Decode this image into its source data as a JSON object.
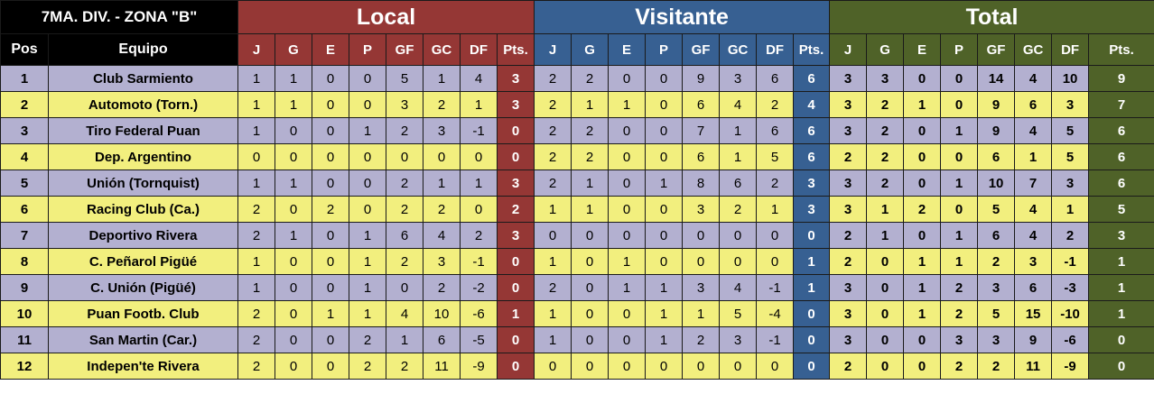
{
  "title": "7MA. DIV. - ZONA \"B\"",
  "groups": {
    "local": "Local",
    "visitante": "Visitante",
    "total": "Total"
  },
  "headers": {
    "pos": "Pos",
    "equipo": "Equipo",
    "stats": [
      "J",
      "G",
      "E",
      "P",
      "GF",
      "GC",
      "DF",
      "Pts."
    ]
  },
  "colors": {
    "local": "#953735",
    "visitante": "#376092",
    "total": "#4f6228",
    "row_lavender": "#b3b0d0",
    "row_yellow": "#f2ef7e"
  },
  "rows": [
    {
      "pos": "1",
      "team": "Club Sarmiento",
      "local": [
        "1",
        "1",
        "0",
        "0",
        "5",
        "1",
        "4",
        "3"
      ],
      "visitante": [
        "2",
        "2",
        "0",
        "0",
        "9",
        "3",
        "6",
        "6"
      ],
      "total": [
        "3",
        "3",
        "0",
        "0",
        "14",
        "4",
        "10",
        "9"
      ]
    },
    {
      "pos": "2",
      "team": "Automoto (Torn.)",
      "local": [
        "1",
        "1",
        "0",
        "0",
        "3",
        "2",
        "1",
        "3"
      ],
      "visitante": [
        "2",
        "1",
        "1",
        "0",
        "6",
        "4",
        "2",
        "4"
      ],
      "total": [
        "3",
        "2",
        "1",
        "0",
        "9",
        "6",
        "3",
        "7"
      ]
    },
    {
      "pos": "3",
      "team": "Tiro Federal Puan",
      "local": [
        "1",
        "0",
        "0",
        "1",
        "2",
        "3",
        "-1",
        "0"
      ],
      "visitante": [
        "2",
        "2",
        "0",
        "0",
        "7",
        "1",
        "6",
        "6"
      ],
      "total": [
        "3",
        "2",
        "0",
        "1",
        "9",
        "4",
        "5",
        "6"
      ]
    },
    {
      "pos": "4",
      "team": "Dep. Argentino",
      "local": [
        "0",
        "0",
        "0",
        "0",
        "0",
        "0",
        "0",
        "0"
      ],
      "visitante": [
        "2",
        "2",
        "0",
        "0",
        "6",
        "1",
        "5",
        "6"
      ],
      "total": [
        "2",
        "2",
        "0",
        "0",
        "6",
        "1",
        "5",
        "6"
      ]
    },
    {
      "pos": "5",
      "team": "Unión (Tornquist)",
      "local": [
        "1",
        "1",
        "0",
        "0",
        "2",
        "1",
        "1",
        "3"
      ],
      "visitante": [
        "2",
        "1",
        "0",
        "1",
        "8",
        "6",
        "2",
        "3"
      ],
      "total": [
        "3",
        "2",
        "0",
        "1",
        "10",
        "7",
        "3",
        "6"
      ]
    },
    {
      "pos": "6",
      "team": "Racing Club (Ca.)",
      "local": [
        "2",
        "0",
        "2",
        "0",
        "2",
        "2",
        "0",
        "2"
      ],
      "visitante": [
        "1",
        "1",
        "0",
        "0",
        "3",
        "2",
        "1",
        "3"
      ],
      "total": [
        "3",
        "1",
        "2",
        "0",
        "5",
        "4",
        "1",
        "5"
      ]
    },
    {
      "pos": "7",
      "team": "Deportivo Rivera",
      "local": [
        "2",
        "1",
        "0",
        "1",
        "6",
        "4",
        "2",
        "3"
      ],
      "visitante": [
        "0",
        "0",
        "0",
        "0",
        "0",
        "0",
        "0",
        "0"
      ],
      "total": [
        "2",
        "1",
        "0",
        "1",
        "6",
        "4",
        "2",
        "3"
      ]
    },
    {
      "pos": "8",
      "team": "C. Peñarol Pigüé",
      "local": [
        "1",
        "0",
        "0",
        "1",
        "2",
        "3",
        "-1",
        "0"
      ],
      "visitante": [
        "1",
        "0",
        "1",
        "0",
        "0",
        "0",
        "0",
        "1"
      ],
      "total": [
        "2",
        "0",
        "1",
        "1",
        "2",
        "3",
        "-1",
        "1"
      ]
    },
    {
      "pos": "9",
      "team": "C. Unión (Pigüé)",
      "local": [
        "1",
        "0",
        "0",
        "1",
        "0",
        "2",
        "-2",
        "0"
      ],
      "visitante": [
        "2",
        "0",
        "1",
        "1",
        "3",
        "4",
        "-1",
        "1"
      ],
      "total": [
        "3",
        "0",
        "1",
        "2",
        "3",
        "6",
        "-3",
        "1"
      ]
    },
    {
      "pos": "10",
      "team": "Puan Footb. Club",
      "local": [
        "2",
        "0",
        "1",
        "1",
        "4",
        "10",
        "-6",
        "1"
      ],
      "visitante": [
        "1",
        "0",
        "0",
        "1",
        "1",
        "5",
        "-4",
        "0"
      ],
      "total": [
        "3",
        "0",
        "1",
        "2",
        "5",
        "15",
        "-10",
        "1"
      ]
    },
    {
      "pos": "11",
      "team": "San Martin (Car.)",
      "local": [
        "2",
        "0",
        "0",
        "2",
        "1",
        "6",
        "-5",
        "0"
      ],
      "visitante": [
        "1",
        "0",
        "0",
        "1",
        "2",
        "3",
        "-1",
        "0"
      ],
      "total": [
        "3",
        "0",
        "0",
        "3",
        "3",
        "9",
        "-6",
        "0"
      ]
    },
    {
      "pos": "12",
      "team": "Indepen'te Rivera",
      "local": [
        "2",
        "0",
        "0",
        "2",
        "2",
        "11",
        "-9",
        "0"
      ],
      "visitante": [
        "0",
        "0",
        "0",
        "0",
        "0",
        "0",
        "0",
        "0"
      ],
      "total": [
        "2",
        "0",
        "0",
        "2",
        "2",
        "11",
        "-9",
        "0"
      ]
    }
  ]
}
